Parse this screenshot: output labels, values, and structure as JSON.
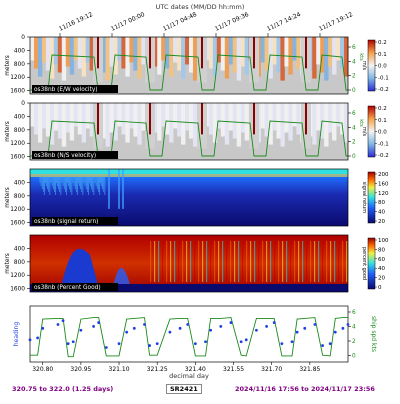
{
  "top_axis": {
    "title": "UTC dates (MM/DD hh:mm)",
    "ticks": [
      "11/16 19:12",
      "11/17 00:00",
      "11/17 04:48",
      "11/17 09:36",
      "11/17 14:24",
      "11/17 19:12"
    ]
  },
  "panels": [
    {
      "label": "os38nb (E/W velocity)",
      "ylabel": "meters",
      "yticks": [
        "0",
        "400",
        "800",
        "1200",
        "1600"
      ],
      "cbar_label": "m/s",
      "cbar_ticks": [
        "0.2",
        "0.1",
        "0.0",
        "-0.1",
        "-0.2"
      ],
      "right_ticks": [
        "6",
        "4",
        "2",
        "0"
      ],
      "right_axis_label": "kts"
    },
    {
      "label": "os38nb (N/S velocity)",
      "ylabel": "meters",
      "yticks": [
        "0",
        "400",
        "800",
        "1200",
        "1600"
      ],
      "cbar_label": "m/s",
      "cbar_ticks": [
        "0.2",
        "0.1",
        "0.0",
        "-0.1",
        "-0.2"
      ],
      "right_ticks": [
        "6",
        "4",
        "2",
        "0"
      ],
      "right_axis_label": "kts"
    },
    {
      "label": "os38nb (signal return)",
      "ylabel": "meters",
      "yticks": [
        "400",
        "800",
        "1200",
        "1600"
      ],
      "cbar_label": "signal return",
      "cbar_ticks": [
        "200",
        "160",
        "120",
        "80",
        "40",
        "20"
      ],
      "right_ticks": [],
      "right_axis_label": ""
    },
    {
      "label": "os38nb (Percent Good)",
      "ylabel": "meters",
      "yticks": [
        "400",
        "800",
        "1200",
        "1600"
      ],
      "cbar_label": "percent good",
      "cbar_ticks": [
        "100",
        "80",
        "60",
        "40",
        "20",
        "0"
      ],
      "right_ticks": [],
      "right_axis_label": ""
    }
  ],
  "bottom_panel": {
    "ylabel_left": "heading",
    "ylabel_right": "ship spd kts",
    "right_ticks": [
      "6",
      "4",
      "2",
      "0"
    ],
    "xticks": [
      "320.80",
      "320.95",
      "321.10",
      "321.25",
      "321.40",
      "321.55",
      "321.70",
      "321.85"
    ],
    "xlabel": "decimal day"
  },
  "footer": {
    "range": "320.75 to 322.0 (1.25 days)",
    "cruise": "SR2421",
    "dates": "2024/11/16 17:56 to 2024/11/17 23:56"
  },
  "colors": {
    "ship_speed": "#1a8a1a",
    "heading": "#1f3fe6",
    "label_text": "#ffffff",
    "footer_text": "#800080"
  },
  "chart_data": {
    "type": "line",
    "x": [
      320.75,
      320.78,
      320.8,
      320.86,
      320.88,
      320.9,
      320.92,
      320.95,
      321.0,
      321.02,
      321.05,
      321.1,
      321.13,
      321.16,
      321.2,
      321.22,
      321.25,
      321.3,
      321.34,
      321.37,
      321.4,
      321.44,
      321.46,
      321.5,
      321.54,
      321.58,
      321.6,
      321.64,
      321.68,
      321.71,
      321.74,
      321.78,
      321.8,
      321.83,
      321.87,
      321.9,
      321.93,
      321.95,
      321.98,
      322.0
    ],
    "series": [
      {
        "name": "ship spd kts",
        "values": [
          0.5,
          0.5,
          5.2,
          5.3,
          5.3,
          0.3,
          0.3,
          5.2,
          5.4,
          5.4,
          0.4,
          0.4,
          5.2,
          5.3,
          5.4,
          0.5,
          0.5,
          5.2,
          5.3,
          5.3,
          0.4,
          0.4,
          5.3,
          5.3,
          5.4,
          0.5,
          0.4,
          5.3,
          5.3,
          5.3,
          0.4,
          0.4,
          5.2,
          5.3,
          5.4,
          0.5,
          0.4,
          5.3,
          5.4,
          5.4
        ]
      },
      {
        "name": "heading",
        "values": [
          90,
          95,
          120,
          130,
          140,
          80,
          85,
          115,
          125,
          135,
          70,
          80,
          110,
          120,
          130,
          75,
          80,
          110,
          120,
          130,
          80,
          85,
          115,
          125,
          135,
          85,
          90,
          115,
          125,
          135,
          80,
          85,
          110,
          120,
          130,
          75,
          80,
          110,
          120,
          130
        ]
      }
    ],
    "xlabel": "decimal day",
    "ylabel": "heading",
    "xlim": [
      320.75,
      322.0
    ],
    "ylim_right": [
      0,
      6
    ],
    "grid": false
  }
}
